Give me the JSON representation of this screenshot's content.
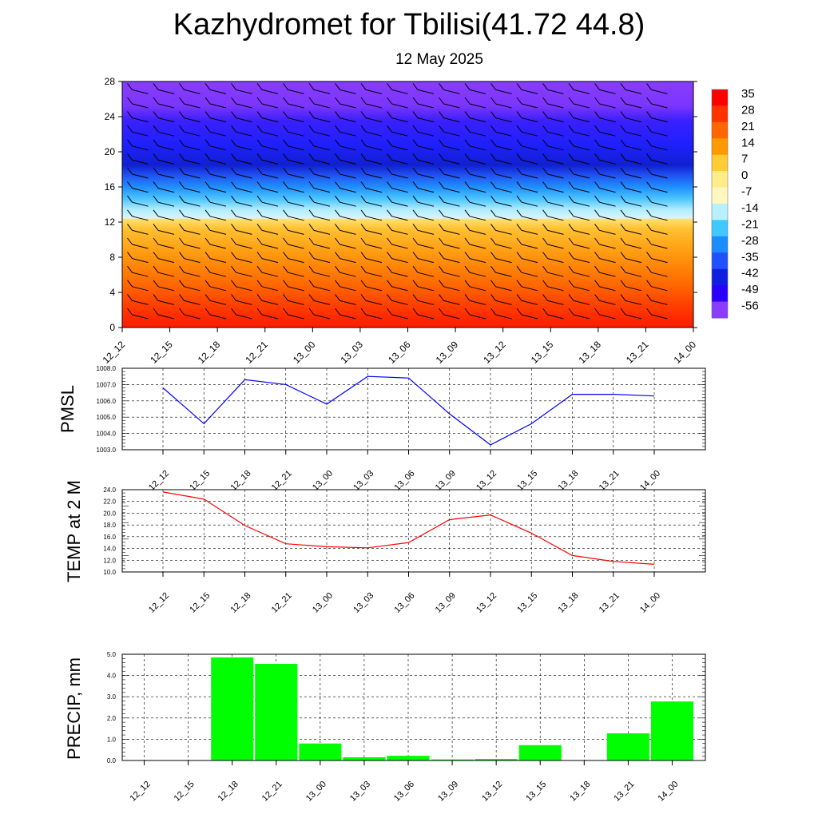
{
  "header": {
    "title": "Kazhydromet for Tbilisi(41.72 44.8)",
    "subtitle": "12 May 2025"
  },
  "colors": {
    "pmsl_line": "#0000ff",
    "temp_line": "#ff0000",
    "precip_bar": "#00ff00",
    "wind_barb": "#000000"
  },
  "chart_data": [
    {
      "type": "heatmap",
      "name": "temperature-cross-section",
      "xlabel": "",
      "ylabel": "",
      "categories": [
        "12_12",
        "12_15",
        "12_18",
        "12_21",
        "13_00",
        "13_03",
        "13_06",
        "13_09",
        "13_12",
        "13_15",
        "13_18",
        "13_21",
        "14_00"
      ],
      "ylim": [
        0,
        28
      ],
      "yticks": [
        0,
        4,
        8,
        12,
        16,
        20,
        24,
        28
      ],
      "colorbar_labels": [
        "35",
        "28",
        "21",
        "14",
        "7",
        "0",
        "-7",
        "-14",
        "-21",
        "-28",
        "-35",
        "-42",
        "-49",
        "-56"
      ],
      "colorbar_colors": [
        "#ff0000",
        "#ff3300",
        "#ff6600",
        "#ff9900",
        "#ffcc33",
        "#ffee88",
        "#fff6c0",
        "#b8f0ff",
        "#40c8ff",
        "#1a8cff",
        "#2050ff",
        "#1020e0",
        "#2a00ff",
        "#8a3cff"
      ],
      "temperature_profile": [
        {
          "level": 0,
          "value": 30
        },
        {
          "level": 4,
          "value": 22
        },
        {
          "level": 8,
          "value": 13
        },
        {
          "level": 12,
          "value": 2
        },
        {
          "level": 12.5,
          "value": -14
        },
        {
          "level": 14,
          "value": -25
        },
        {
          "level": 16,
          "value": -37
        },
        {
          "level": 18,
          "value": -52
        },
        {
          "level": 20,
          "value": -58
        },
        {
          "level": 24,
          "value": -56
        },
        {
          "level": 28,
          "value": -60
        }
      ],
      "grid": false
    },
    {
      "type": "line",
      "name": "pmsl",
      "ylabel": "PMSL",
      "categories": [
        "12_12",
        "12_15",
        "12_18",
        "12_21",
        "13_00",
        "13_03",
        "13_06",
        "13_09",
        "13_12",
        "13_15",
        "13_18",
        "13_21",
        "14_00"
      ],
      "series": [
        {
          "values": [
            1006.8,
            1004.6,
            1007.3,
            1007.0,
            1005.8,
            1007.5,
            1007.4,
            1005.2,
            1003.3,
            1004.6,
            1006.4,
            1006.4,
            1006.3
          ]
        }
      ],
      "ylim": [
        1003.0,
        1008.0
      ],
      "yticks": [
        "1003.0",
        "1004.0",
        "1005.0",
        "1006.0",
        "1007.0",
        "1008.0"
      ],
      "grid": true
    },
    {
      "type": "line",
      "name": "temp-2m",
      "ylabel": "TEMP at 2 M",
      "categories": [
        "12_12",
        "12_15",
        "12_18",
        "12_21",
        "13_00",
        "13_03",
        "13_06",
        "13_09",
        "13_12",
        "13_15",
        "13_18",
        "13_21",
        "14_00"
      ],
      "series": [
        {
          "values": [
            23.6,
            22.4,
            17.9,
            14.8,
            14.3,
            14.1,
            15.0,
            18.9,
            19.7,
            16.6,
            12.8,
            11.8,
            11.3
          ]
        }
      ],
      "ylim": [
        10.0,
        24.0
      ],
      "yticks": [
        "10.0",
        "12.0",
        "14.0",
        "16.0",
        "18.0",
        "20.0",
        "22.0",
        "24.0"
      ],
      "grid": true
    },
    {
      "type": "bar",
      "name": "precip",
      "ylabel": "PRECIP, mm",
      "categories": [
        "12_12",
        "12_15",
        "12_18",
        "12_21",
        "13_00",
        "13_03",
        "13_06",
        "13_09",
        "13_12",
        "13_15",
        "13_18",
        "13_21",
        "14_00"
      ],
      "values": [
        0,
        0,
        4.85,
        4.55,
        0.8,
        0.15,
        0.22,
        0.05,
        0.07,
        0.72,
        0,
        1.28,
        2.78
      ],
      "ylim": [
        0.0,
        5.0
      ],
      "yticks": [
        "0.0",
        "1.0",
        "2.0",
        "3.0",
        "4.0",
        "5.0"
      ],
      "grid": true
    }
  ]
}
